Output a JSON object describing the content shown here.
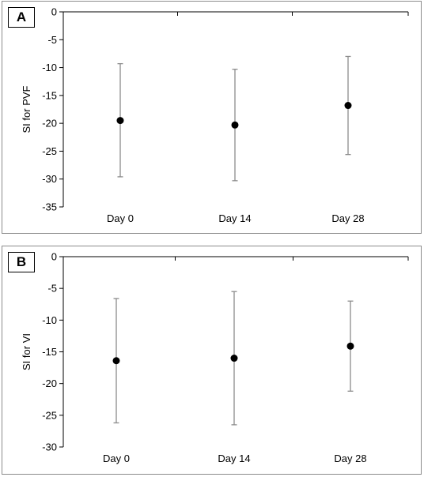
{
  "chart_data": [
    {
      "type": "scatter",
      "panel_label": "A",
      "ylabel": "SI for PVF",
      "xlabel": "",
      "categories": [
        "Day 0",
        "Day 14",
        "Day 28"
      ],
      "values": [
        -19.5,
        -20.3,
        -16.8
      ],
      "error_upper": [
        -9.3,
        -10.3,
        -8.0
      ],
      "error_lower": [
        -29.6,
        -30.3,
        -25.6
      ],
      "ylim": [
        -35,
        0
      ],
      "yticks": [
        0,
        -5,
        -10,
        -15,
        -20,
        -25,
        -30,
        -35
      ],
      "grid": false,
      "marker_color": "#000000",
      "errorbar_color": "#8c8c8c"
    },
    {
      "type": "scatter",
      "panel_label": "B",
      "ylabel": "SI for VI",
      "xlabel": "",
      "categories": [
        "Day 0",
        "Day 14",
        "Day 28"
      ],
      "values": [
        -16.4,
        -16.0,
        -14.1
      ],
      "error_upper": [
        -6.6,
        -5.5,
        -7.0
      ],
      "error_lower": [
        -26.2,
        -26.5,
        -21.2
      ],
      "ylim": [
        -30,
        0
      ],
      "yticks": [
        0,
        -5,
        -10,
        -15,
        -20,
        -25,
        -30
      ],
      "grid": false,
      "marker_color": "#000000",
      "errorbar_color": "#8c8c8c"
    }
  ]
}
